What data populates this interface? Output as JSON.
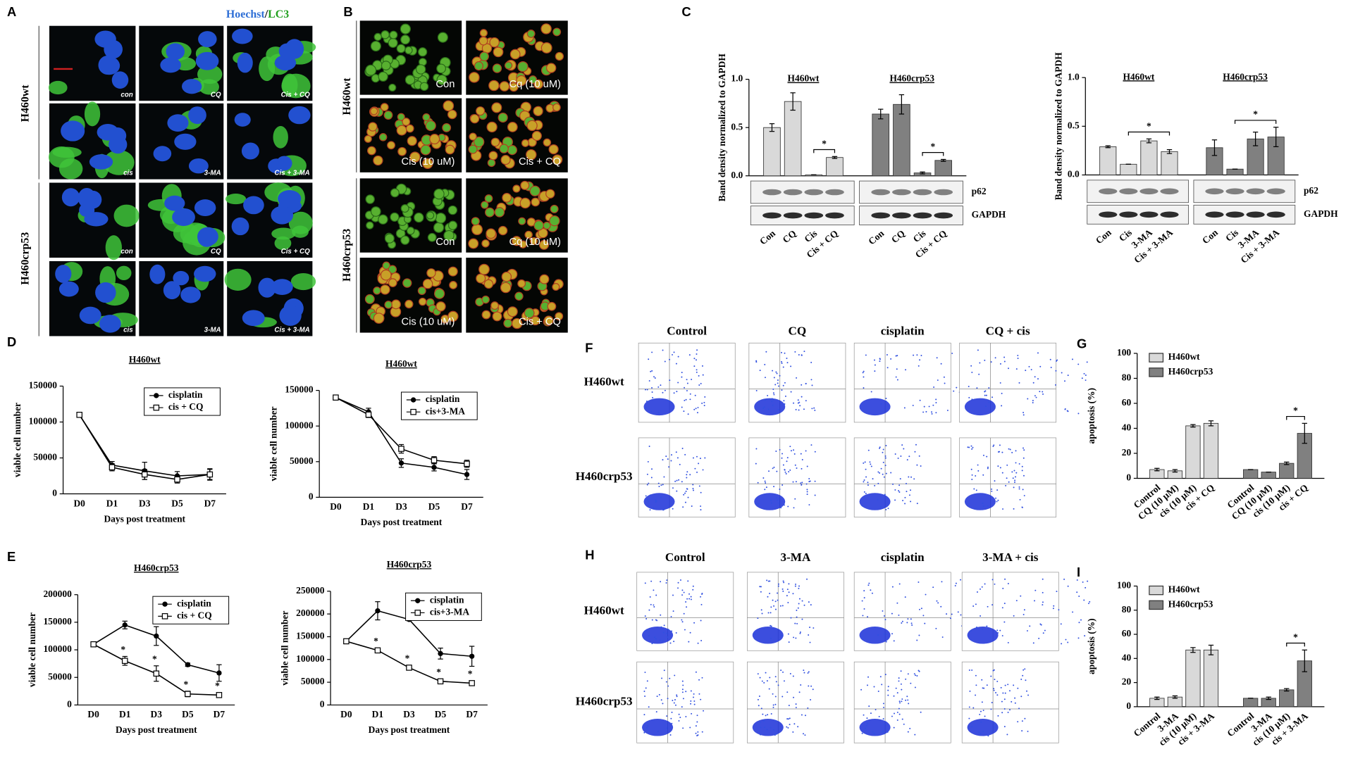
{
  "panel_letters": [
    "A",
    "B",
    "C",
    "D",
    "E",
    "F",
    "G",
    "H",
    "I"
  ],
  "panel_a": {
    "stains": [
      "Hoechst",
      "/",
      "LC3"
    ],
    "rows": [
      "H460wt",
      "H460crp53"
    ],
    "labels": [
      "con",
      "CQ",
      "Cis + CQ",
      "cis",
      "3-MA",
      "Cis + 3-MA"
    ]
  },
  "panel_b": {
    "rows": [
      "H460wt",
      "H460crp53"
    ],
    "labels": [
      "Con",
      "Cq (10 uM)",
      "Cis (10 uM)",
      "Cis + CQ"
    ]
  },
  "panel_f": {
    "columns": [
      "Control",
      "CQ",
      "cisplatin",
      "CQ + cis"
    ],
    "rows": [
      "H460wt",
      "H460crp53"
    ]
  },
  "panel_h": {
    "columns": [
      "Control",
      "3-MA",
      "cisplatin",
      "3-MA + cis"
    ],
    "rows": [
      "H460wt",
      "H460crp53"
    ]
  },
  "chart_data": [
    {
      "type": "bar",
      "ylabel": "Band density normalized to GAPDH",
      "categories": [
        "Con",
        "CQ",
        "Cis",
        "Cis + CQ"
      ],
      "series": [
        {
          "name": "H460wt",
          "color": "#d9d9d9",
          "values": [
            0.5,
            0.77,
            0.01,
            0.19
          ],
          "errors": [
            0.04,
            0.09,
            0,
            0.01
          ],
          "bracket": [
            "Cis",
            "Cis + CQ"
          ]
        },
        {
          "name": "H460crp53",
          "color": "#808080",
          "values": [
            0.64,
            0.74,
            0.03,
            0.16
          ],
          "errors": [
            0.05,
            0.1,
            0.01,
            0.01
          ],
          "bracket": [
            "Cis",
            "Cis + CQ"
          ]
        }
      ],
      "ylim": [
        0,
        1
      ],
      "yticks": [
        {
          "value": 0,
          "label": "0.0"
        },
        0.5,
        {
          "value": 1,
          "label": "1.0"
        }
      ],
      "annotation": "*",
      "blot_labels": [
        "p62",
        "GAPDH"
      ]
    },
    {
      "type": "bar",
      "ylabel": "Band density normalized to GAPDH",
      "categories": [
        "Con",
        "Cis",
        "3-MA",
        "Cis + 3-MA"
      ],
      "series": [
        {
          "name": "H460wt",
          "color": "#d9d9d9",
          "values": [
            0.29,
            0.11,
            0.35,
            0.24
          ],
          "errors": [
            0.01,
            0,
            0.02,
            0.02
          ],
          "bracket": [
            "Cis",
            "Cis + 3-MA"
          ]
        },
        {
          "name": "H460crp53",
          "color": "#808080",
          "values": [
            0.28,
            0.06,
            0.37,
            0.39
          ],
          "errors": [
            0.08,
            0,
            0.07,
            0.1
          ],
          "bracket": [
            "Cis",
            "Cis + 3-MA"
          ]
        }
      ],
      "ylim": [
        0,
        1
      ],
      "yticks": [
        {
          "value": 0,
          "label": "0.0"
        },
        0.5,
        {
          "value": 1,
          "label": "1.0"
        }
      ],
      "annotation": "*",
      "blot_labels": [
        "p62",
        "GAPDH"
      ]
    },
    {
      "type": "line",
      "title": "H460wt",
      "xlabel": "Days post treatment",
      "ylabel": "viable cell number",
      "categories": [
        "D0",
        "D1",
        "D3",
        "D5",
        "D7"
      ],
      "series": [
        {
          "name": "cisplatin",
          "color": "#000000",
          "marker": "circle",
          "values": [
            110000,
            40000,
            32000,
            25000,
            27000
          ],
          "errors": [
            2000,
            5000,
            12000,
            6000,
            8000
          ]
        },
        {
          "name": "cis + CQ",
          "color": "#000000",
          "marker": "square",
          "values": [
            110000,
            37000,
            27000,
            20000,
            27000
          ],
          "errors": [
            2000,
            5000,
            7000,
            5000,
            7000
          ]
        }
      ],
      "ylim": [
        0,
        150000
      ],
      "yticks": [
        0,
        50000,
        100000,
        150000
      ],
      "legend": "upper right"
    },
    {
      "type": "line",
      "title": "H460wt",
      "xlabel": "Days post treatment",
      "ylabel": "viable cell number",
      "categories": [
        "D0",
        "D1",
        "D3",
        "D5",
        "D7"
      ],
      "series": [
        {
          "name": "cisplatin",
          "color": "#000000",
          "marker": "circle",
          "values": [
            140000,
            120000,
            48000,
            42000,
            32000
          ],
          "errors": [
            2000,
            5000,
            6000,
            5000,
            7000
          ]
        },
        {
          "name": "cis+3-MA",
          "color": "#000000",
          "marker": "square",
          "values": [
            140000,
            116000,
            68000,
            52000,
            47000
          ],
          "errors": [
            2000,
            4000,
            6000,
            5000,
            5000
          ]
        }
      ],
      "ylim": [
        0,
        150000
      ],
      "yticks": [
        0,
        50000,
        100000,
        150000
      ],
      "legend": "upper right"
    },
    {
      "type": "line",
      "title": "H460crp53",
      "xlabel": "Days post treatment",
      "ylabel": "viable cell number",
      "categories": [
        "D0",
        "D1",
        "D3",
        "D5",
        "D7"
      ],
      "series": [
        {
          "name": "cisplatin",
          "color": "#000000",
          "marker": "circle",
          "values": [
            110000,
            145000,
            125000,
            73000,
            58000
          ],
          "errors": [
            3000,
            7000,
            17000,
            3000,
            15000
          ]
        },
        {
          "name": "cis + CQ",
          "color": "#000000",
          "marker": "square",
          "values": [
            110000,
            80000,
            57000,
            20000,
            18000
          ],
          "errors": [
            3000,
            8000,
            14000,
            5000,
            4000
          ],
          "significant": [
            false,
            true,
            true,
            true,
            true
          ]
        }
      ],
      "ylim": [
        0,
        200000
      ],
      "yticks": [
        0,
        50000,
        100000,
        150000,
        200000
      ],
      "legend": "upper right",
      "annotation": "*"
    },
    {
      "type": "line",
      "title": "H460crp53",
      "xlabel": "Days post treatment",
      "ylabel": "viable cell number",
      "categories": [
        "D0",
        "D1",
        "D3",
        "D5",
        "D7"
      ],
      "series": [
        {
          "name": "cisplatin",
          "color": "#000000",
          "marker": "circle",
          "values": [
            140000,
            207000,
            188000,
            113000,
            107000
          ],
          "errors": [
            3000,
            20000,
            3000,
            12000,
            22000
          ]
        },
        {
          "name": "cis+3-MA",
          "color": "#000000",
          "marker": "square",
          "values": [
            140000,
            120000,
            82000,
            52000,
            48000
          ],
          "errors": [
            3000,
            5000,
            5000,
            5000,
            5000
          ],
          "significant": [
            false,
            true,
            true,
            true,
            true
          ]
        }
      ],
      "ylim": [
        0,
        250000
      ],
      "yticks": [
        0,
        50000,
        100000,
        150000,
        200000,
        250000
      ],
      "legend": "upper right",
      "annotation": "*"
    },
    {
      "type": "bar",
      "ylabel": "apoptosis  (%)",
      "categories": [
        "Control",
        "CQ (10 μM)",
        "cis (10 μM)",
        "cis + CQ"
      ],
      "series": [
        {
          "name": "H460wt",
          "color": "#d9d9d9",
          "values": [
            7,
            6,
            42,
            44
          ],
          "errors": [
            1,
            1,
            1,
            2
          ]
        },
        {
          "name": "H460crp53",
          "color": "#808080",
          "values": [
            7,
            5,
            12,
            36
          ],
          "errors": [
            0,
            0,
            1,
            8
          ],
          "bracket": [
            "cis (10 μM)",
            "cis + CQ"
          ]
        }
      ],
      "ylim": [
        0,
        100
      ],
      "yticks": [
        0,
        20,
        40,
        60,
        80,
        100
      ],
      "legend": "upper left",
      "annotation": "*"
    },
    {
      "type": "bar",
      "ylabel": "apoptosis  (%)",
      "categories": [
        "Control",
        "3-MA",
        "cis (10 μM)",
        "cis + 3-MA"
      ],
      "series": [
        {
          "name": "H460wt",
          "color": "#d9d9d9",
          "values": [
            7,
            8,
            47,
            47
          ],
          "errors": [
            1,
            1,
            2,
            4
          ]
        },
        {
          "name": "H460crp53",
          "color": "#808080",
          "values": [
            7,
            7,
            14,
            38
          ],
          "errors": [
            0,
            1,
            1,
            9
          ],
          "bracket": [
            "cis (10 μM)",
            "cis + 3-MA"
          ]
        }
      ],
      "ylim": [
        0,
        100
      ],
      "yticks": [
        0,
        20,
        40,
        60,
        80,
        100
      ],
      "legend": "upper left",
      "annotation": "*"
    }
  ]
}
